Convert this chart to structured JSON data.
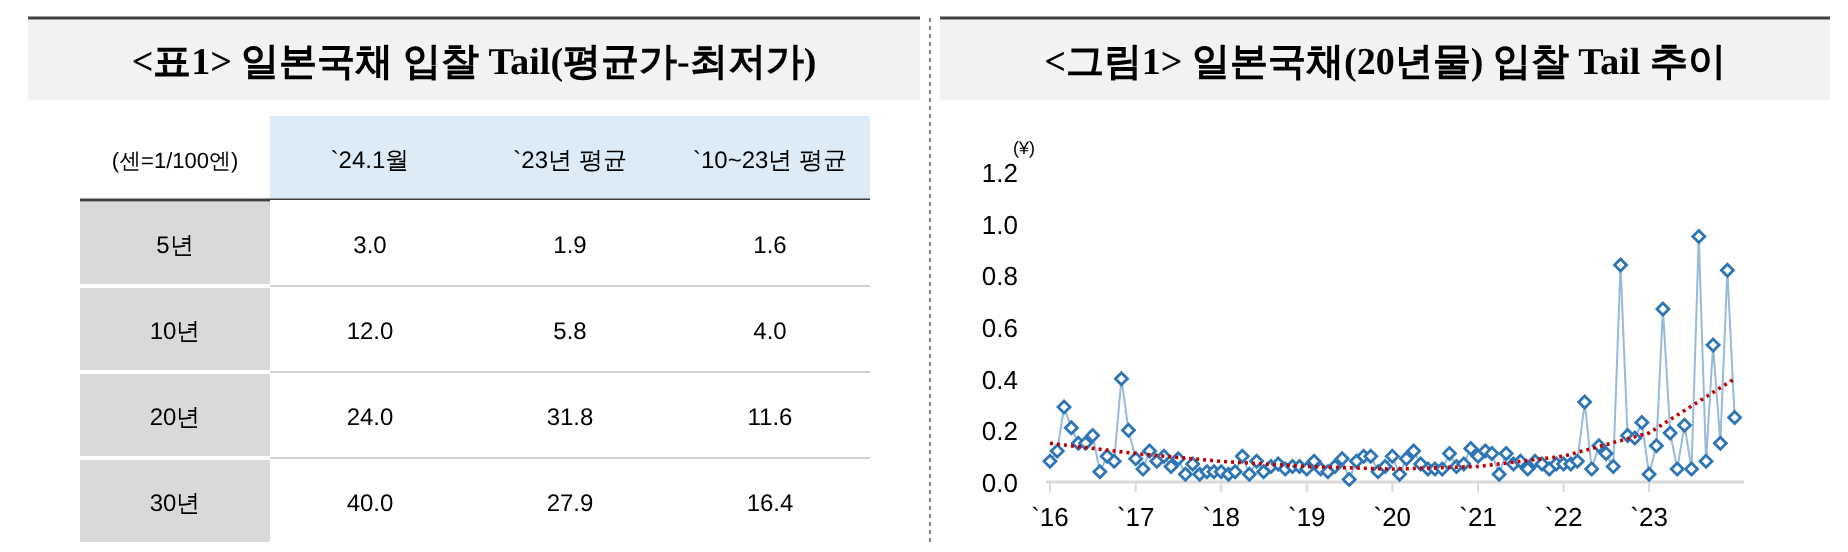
{
  "chart_data": [
    {
      "type": "heatmap",
      "title": "<표1> 일본국채 입찰 Tail(평균가-최저가)",
      "annotations": [
        "(센=1/100엔)"
      ],
      "categories": [
        "`24.1월",
        "`23년 평균",
        "`10~23년 평균"
      ],
      "y_categories": [
        "5년",
        "10년",
        "20년",
        "30년"
      ],
      "cells": [
        [
          3.0,
          1.9,
          1.6
        ],
        [
          12.0,
          5.8,
          4.0
        ],
        [
          24.0,
          31.8,
          11.6
        ],
        [
          40.0,
          27.9,
          16.4
        ]
      ],
      "cell_labels": [
        [
          "3.0",
          "1.9",
          "1.6"
        ],
        [
          "12.0",
          "5.8",
          "4.0"
        ],
        [
          "24.0",
          "31.8",
          "11.6"
        ],
        [
          "40.0",
          "27.9",
          "16.4"
        ]
      ],
      "data_labels": true
    },
    {
      "type": "line",
      "title": "<그림1> 일본국채(20년물) 입찰 Tail 추이",
      "ylabel": "(¥)",
      "marker": "diamond",
      "grid": false,
      "xlim": [
        "2015-12-15",
        "2024-02-10"
      ],
      "xticks": [
        {
          "value": "2016-01",
          "label": "`16"
        },
        {
          "value": "2017-01",
          "label": "`17"
        },
        {
          "value": "2018-01",
          "label": "`18"
        },
        {
          "value": "2019-01",
          "label": "`19"
        },
        {
          "value": "2020-01",
          "label": "`20"
        },
        {
          "value": "2021-01",
          "label": "`21"
        },
        {
          "value": "2022-01",
          "label": "`22"
        },
        {
          "value": "2023-01",
          "label": "`23"
        }
      ],
      "ylim": [
        0,
        1.2
      ],
      "yticks": [
        {
          "value": 0,
          "label": "0.0"
        },
        {
          "value": 0.2,
          "label": "0.2"
        },
        {
          "value": 0.4,
          "label": "0.4"
        },
        {
          "value": 0.6,
          "label": "0.6"
        },
        {
          "value": 0.8,
          "label": "0.8"
        },
        {
          "value": 1.0,
          "label": "1.0"
        },
        {
          "value": 1.2,
          "label": "1.2"
        }
      ],
      "series": [
        {
          "color": "#2e75b6",
          "x": [
            "2016-01",
            "2016-02",
            "2016-03",
            "2016-04",
            "2016-05",
            "2016-06",
            "2016-07",
            "2016-08",
            "2016-09",
            "2016-10",
            "2016-11",
            "2016-12",
            "2017-01",
            "2017-02",
            "2017-03",
            "2017-04",
            "2017-05",
            "2017-06",
            "2017-07",
            "2017-08",
            "2017-09",
            "2017-10",
            "2017-11",
            "2017-12",
            "2018-01",
            "2018-02",
            "2018-03",
            "2018-04",
            "2018-05",
            "2018-06",
            "2018-07",
            "2018-08",
            "2018-09",
            "2018-10",
            "2018-11",
            "2018-12",
            "2019-01",
            "2019-02",
            "2019-03",
            "2019-04",
            "2019-05",
            "2019-06",
            "2019-07",
            "2019-08",
            "2019-09",
            "2019-10",
            "2019-11",
            "2019-12",
            "2020-01",
            "2020-02",
            "2020-03",
            "2020-04",
            "2020-05",
            "2020-06",
            "2020-07",
            "2020-08",
            "2020-09",
            "2020-10",
            "2020-11",
            "2020-12",
            "2021-01",
            "2021-02",
            "2021-03",
            "2021-04",
            "2021-05",
            "2021-06",
            "2021-07",
            "2021-08",
            "2021-09",
            "2021-10",
            "2021-11",
            "2021-12",
            "2022-01",
            "2022-02",
            "2022-03",
            "2022-04",
            "2022-05",
            "2022-06",
            "2022-07",
            "2022-08",
            "2022-09",
            "2022-10",
            "2022-11",
            "2022-12",
            "2023-01",
            "2023-02",
            "2023-03",
            "2023-04",
            "2023-05",
            "2023-06",
            "2023-07",
            "2023-08",
            "2023-09",
            "2023-10",
            "2023-11",
            "2023-12",
            "2024-01"
          ],
          "values": [
            0.08,
            0.12,
            0.29,
            0.21,
            0.15,
            0.15,
            0.18,
            0.04,
            0.1,
            0.08,
            0.4,
            0.2,
            0.09,
            0.05,
            0.12,
            0.08,
            0.1,
            0.06,
            0.09,
            0.03,
            0.07,
            0.03,
            0.04,
            0.04,
            0.04,
            0.03,
            0.04,
            0.1,
            0.03,
            0.08,
            0.04,
            0.06,
            0.07,
            0.05,
            0.06,
            0.06,
            0.05,
            0.08,
            0.05,
            0.04,
            0.06,
            0.09,
            0.01,
            0.08,
            0.1,
            0.1,
            0.04,
            0.06,
            0.1,
            0.03,
            0.09,
            0.12,
            0.07,
            0.05,
            0.05,
            0.05,
            0.11,
            0.06,
            0.07,
            0.13,
            0.1,
            0.12,
            0.11,
            0.03,
            0.11,
            0.07,
            0.08,
            0.05,
            0.08,
            0.07,
            0.05,
            0.07,
            0.07,
            0.07,
            0.08,
            0.31,
            0.05,
            0.14,
            0.11,
            0.06,
            0.84,
            0.18,
            0.17,
            0.23,
            0.03,
            0.14,
            0.67,
            0.19,
            0.05,
            0.22,
            0.05,
            0.95,
            0.08,
            0.53,
            0.15,
            0.82,
            0.25
          ]
        },
        {
          "type": "line",
          "color": "#c00000",
          "line_style": "dotted",
          "marker": "none",
          "x": [
            "2016-01",
            "2017-01",
            "2018-01",
            "2019-01",
            "2020-01",
            "2021-01",
            "2022-01",
            "2023-01",
            "2024-01"
          ],
          "values": [
            0.15,
            0.11,
            0.08,
            0.06,
            0.05,
            0.06,
            0.1,
            0.19,
            0.4
          ]
        }
      ]
    }
  ]
}
